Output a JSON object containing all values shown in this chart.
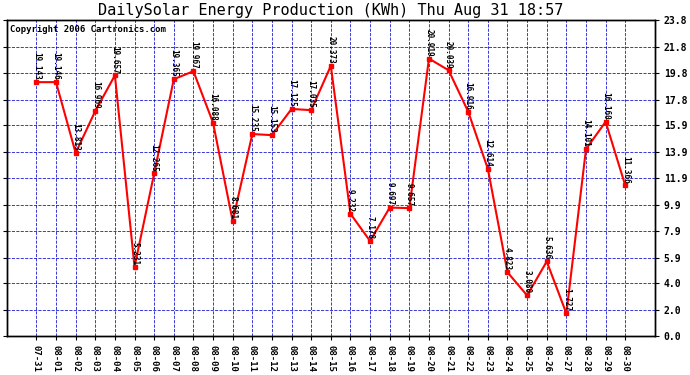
{
  "title": "DailySolar Energy Production (KWh) Thu Aug 31 18:57",
  "copyright": "Copyright 2006 Cartronics.com",
  "dates": [
    "07-31",
    "08-01",
    "08-02",
    "08-03",
    "08-04",
    "08-05",
    "08-06",
    "08-07",
    "08-08",
    "08-09",
    "08-10",
    "08-11",
    "08-12",
    "08-13",
    "08-14",
    "08-15",
    "08-16",
    "08-17",
    "08-18",
    "08-19",
    "08-20",
    "08-21",
    "08-22",
    "08-23",
    "08-24",
    "08-25",
    "08-26",
    "08-27",
    "08-28",
    "08-29",
    "08-30"
  ],
  "values": [
    19.143,
    19.146,
    13.813,
    16.969,
    19.657,
    5.231,
    12.265,
    19.365,
    19.967,
    16.088,
    8.681,
    15.235,
    15.153,
    17.125,
    17.035,
    20.373,
    9.232,
    7.178,
    9.697,
    9.657,
    20.919,
    20.039,
    16.916,
    12.614,
    4.823,
    3.08,
    5.636,
    1.727,
    14.101,
    16.16,
    11.366
  ],
  "yticks": [
    0.0,
    2.0,
    4.0,
    5.9,
    7.9,
    9.9,
    11.9,
    13.9,
    15.9,
    17.8,
    19.8,
    21.8,
    23.8
  ],
  "ymin": 0.0,
  "ymax": 23.8,
  "line_color": "red",
  "marker_color": "red",
  "marker_style": "s",
  "marker_size": 3,
  "fig_bg_color": "#ffffff",
  "plot_bg_color": "#ffffff",
  "grid_color": "#0000cc",
  "tick_label_color": "#000000",
  "title_color": "#000000",
  "label_fontsize": 6.5,
  "title_fontsize": 11,
  "copyright_fontsize": 6.5,
  "value_label_fontsize": 5.5,
  "figwidth": 6.9,
  "figheight": 3.75,
  "dpi": 100
}
